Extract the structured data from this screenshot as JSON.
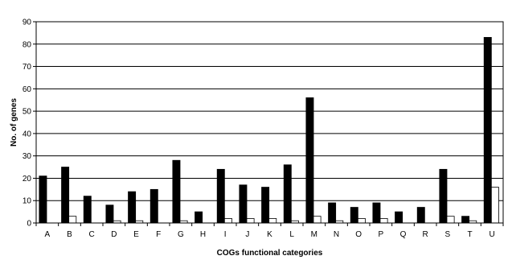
{
  "chart_data": {
    "type": "bar",
    "title": "",
    "xlabel": "COGs functional categories",
    "ylabel": "No. of genes",
    "ylim": [
      0,
      90
    ],
    "yticks": [
      0,
      10,
      20,
      30,
      40,
      50,
      60,
      70,
      80,
      90
    ],
    "grid": "horizontal",
    "legend": "none",
    "categories": [
      "A",
      "B",
      "C",
      "D",
      "E",
      "F",
      "G",
      "H",
      "I",
      "J",
      "K",
      "L",
      "M",
      "N",
      "O",
      "P",
      "Q",
      "R",
      "S",
      "T",
      "U"
    ],
    "series": [
      {
        "color": "#000000",
        "values": [
          21,
          25,
          12,
          8,
          14,
          15,
          28,
          5,
          24,
          17,
          16,
          26,
          56,
          9,
          7,
          9,
          5,
          7,
          24,
          3,
          83
        ]
      },
      {
        "color": "#ffffff",
        "values": [
          0,
          3,
          0,
          1,
          1,
          0,
          1,
          0,
          2,
          2,
          2,
          1,
          3,
          1,
          2,
          2,
          0,
          0,
          3,
          1,
          16
        ]
      }
    ]
  }
}
